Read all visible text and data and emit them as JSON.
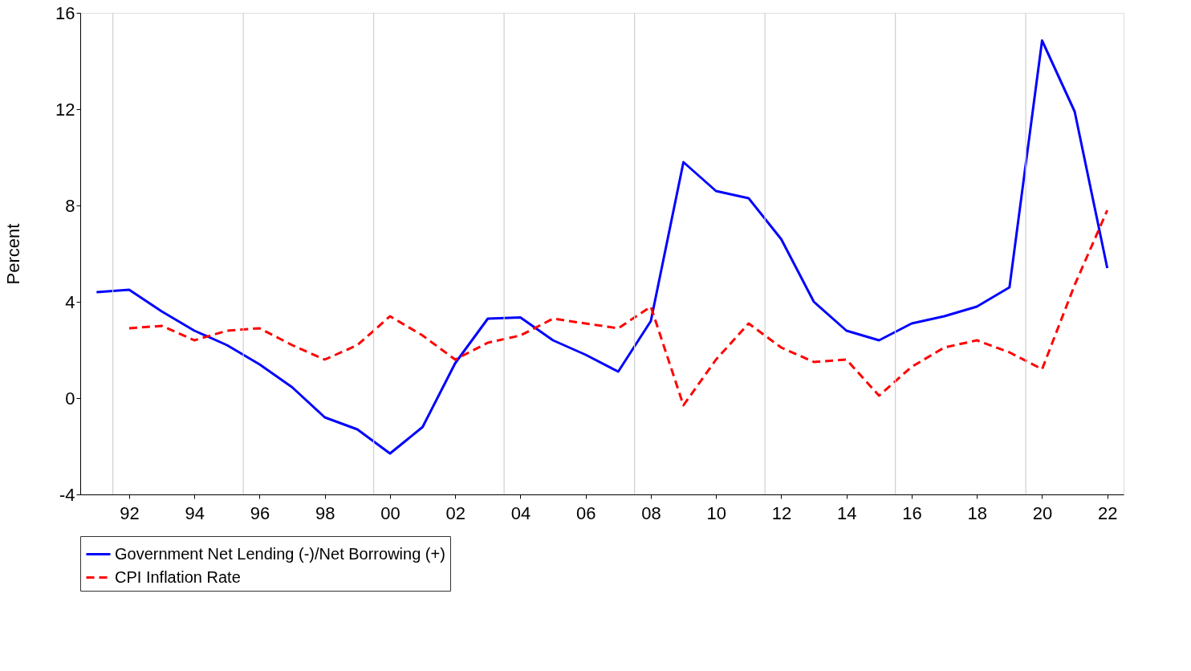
{
  "chart_data": {
    "type": "line",
    "ylabel": "Percent",
    "x": [
      1991,
      1992,
      1993,
      1994,
      1995,
      1996,
      1997,
      1998,
      1999,
      2000,
      2001,
      2002,
      2003,
      2004,
      2005,
      2006,
      2007,
      2008,
      2009,
      2010,
      2011,
      2012,
      2013,
      2014,
      2015,
      2016,
      2017,
      2018,
      2019,
      2020,
      2021,
      2022
    ],
    "series": [
      {
        "name": "Government Net Lending (-)/Net Borrowing (+)",
        "color": "#0000ff",
        "line_style": "solid",
        "values": [
          4.4,
          4.5,
          3.6,
          2.8,
          2.2,
          1.4,
          0.45,
          -0.8,
          -1.3,
          -2.3,
          -1.2,
          1.45,
          3.3,
          3.35,
          2.4,
          1.8,
          1.1,
          3.2,
          9.8,
          8.6,
          8.3,
          6.6,
          4.0,
          2.8,
          2.4,
          3.1,
          3.4,
          3.8,
          4.6,
          14.85,
          11.9,
          5.4
        ]
      },
      {
        "name": "CPI Inflation Rate",
        "color": "#ff0000",
        "line_style": "dashed",
        "values": [
          null,
          2.9,
          3.0,
          2.4,
          2.8,
          2.9,
          2.2,
          1.6,
          2.2,
          3.4,
          2.6,
          1.6,
          2.3,
          2.6,
          3.3,
          3.1,
          2.9,
          3.8,
          -0.3,
          1.6,
          3.1,
          2.1,
          1.5,
          1.6,
          0.1,
          1.3,
          2.1,
          2.4,
          1.9,
          1.2,
          4.7,
          7.8
        ]
      }
    ],
    "xlim": [
      1990.5,
      2022.5
    ],
    "xticks": [
      {
        "value": 1992,
        "label": "92"
      },
      {
        "value": 1994,
        "label": "94"
      },
      {
        "value": 1996,
        "label": "96"
      },
      {
        "value": 1998,
        "label": "98"
      },
      {
        "value": 2000,
        "label": "00"
      },
      {
        "value": 2002,
        "label": "02"
      },
      {
        "value": 2004,
        "label": "04"
      },
      {
        "value": 2006,
        "label": "06"
      },
      {
        "value": 2008,
        "label": "08"
      },
      {
        "value": 2010,
        "label": "10"
      },
      {
        "value": 2012,
        "label": "12"
      },
      {
        "value": 2014,
        "label": "14"
      },
      {
        "value": 2016,
        "label": "16"
      },
      {
        "value": 2018,
        "label": "18"
      },
      {
        "value": 2020,
        "label": "20"
      },
      {
        "value": 2022,
        "label": "22"
      }
    ],
    "ylim": [
      -4,
      16
    ],
    "yticks": [
      -4,
      0,
      4,
      8,
      12,
      16
    ],
    "ref_lines": [
      {
        "axis": "x",
        "value": 1991.5,
        "color": "#d0d0d0"
      },
      {
        "axis": "x",
        "value": 1995.5,
        "color": "#d0d0d0"
      },
      {
        "axis": "x",
        "value": 1999.5,
        "color": "#d0d0d0"
      },
      {
        "axis": "x",
        "value": 2003.5,
        "color": "#d0d0d0"
      },
      {
        "axis": "x",
        "value": 2007.5,
        "color": "#d0d0d0"
      },
      {
        "axis": "x",
        "value": 2011.5,
        "color": "#d0d0d0"
      },
      {
        "axis": "x",
        "value": 2015.5,
        "color": "#d0d0d0"
      },
      {
        "axis": "x",
        "value": 2019.5,
        "color": "#d0d0d0"
      }
    ],
    "grid": false,
    "legend": "bottom",
    "marker": "none"
  }
}
